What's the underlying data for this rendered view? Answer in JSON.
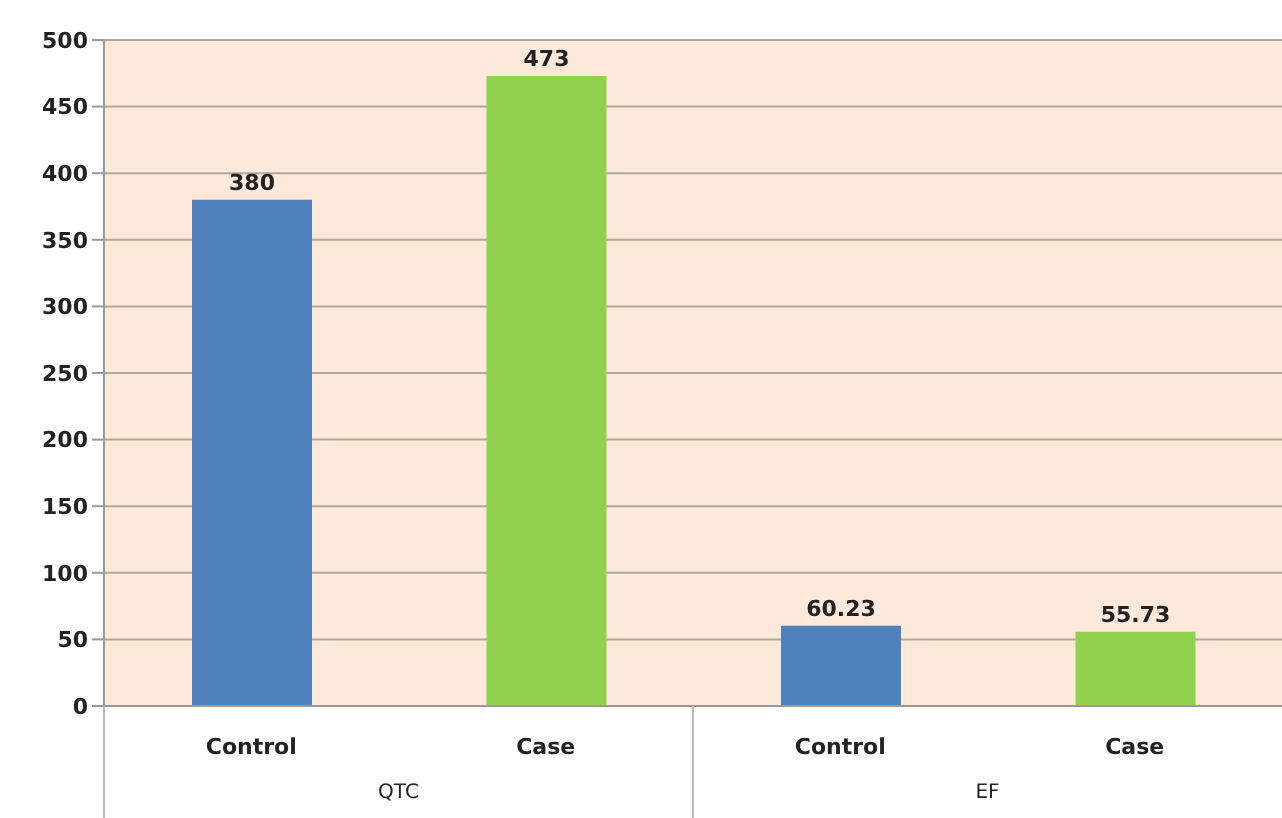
{
  "chart_data": {
    "type": "bar",
    "categories": [
      "Control",
      "Case",
      "Control",
      "Case"
    ],
    "values": [
      380,
      473,
      60.23,
      55.73
    ],
    "colors": [
      "#4f81bd",
      "#92d050",
      "#4f81bd",
      "#92d050"
    ],
    "ylim": [
      0,
      500
    ],
    "yticks": [
      0,
      50,
      100,
      150,
      200,
      250,
      300,
      350,
      400,
      450,
      500
    ],
    "grid": "y",
    "data_labels": true,
    "annotations": [
      "QTC",
      "EF"
    ]
  }
}
